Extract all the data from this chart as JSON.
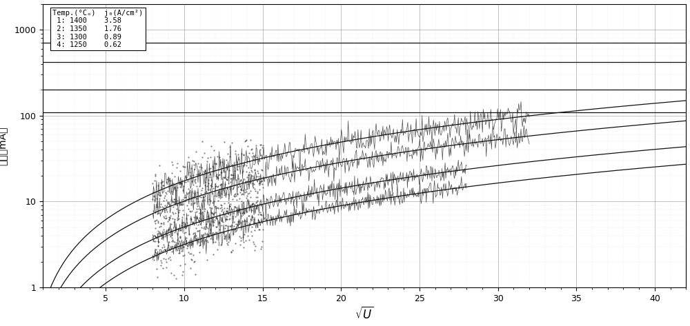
{
  "title": "",
  "xlabel": "$\\sqrt{U}$",
  "ylabel": "电流（mA）",
  "xlim": [
    1,
    42
  ],
  "ylim": [
    1,
    2000
  ],
  "xticks": [
    5,
    10,
    15,
    20,
    25,
    30,
    35,
    40
  ],
  "series": [
    {
      "label": "1: 1400   3.58",
      "sat_mA": 700,
      "coeff": 0.55,
      "exp_start": 8,
      "exp_end": 32,
      "noise": 0.18
    },
    {
      "label": "2: 1350   1.76",
      "sat_mA": 420,
      "coeff": 0.32,
      "exp_start": 8,
      "exp_end": 32,
      "noise": 0.15
    },
    {
      "label": "3: 1300   0.89",
      "sat_mA": 200,
      "coeff": 0.16,
      "exp_start": 8,
      "exp_end": 28,
      "noise": 0.13
    },
    {
      "label": "4: 1250   0.62",
      "sat_mA": 110,
      "coeff": 0.1,
      "exp_start": 8,
      "exp_end": 28,
      "noise": 0.12
    }
  ],
  "legend_text": "Temp.(°Cₒ)  j₀(A/cm²)\n 1: 1400    3.58\n 2: 1350    1.76\n 3: 1300    0.89\n 4: 1250    0.62",
  "bg_color": "#ffffff",
  "grid_major_color": "#888888",
  "grid_minor_color": "#aaaaaa"
}
